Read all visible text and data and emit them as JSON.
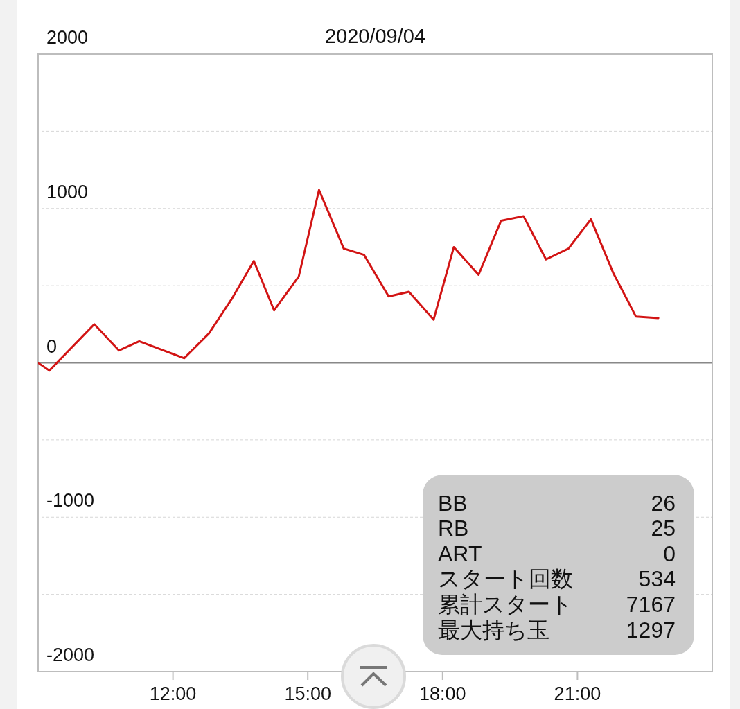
{
  "chart_data": {
    "type": "line",
    "title": "2020/09/04",
    "x": [
      9.0,
      9.25,
      10.25,
      10.8,
      11.25,
      12.25,
      12.8,
      13.3,
      13.8,
      14.25,
      14.8,
      15.25,
      15.8,
      16.25,
      16.8,
      17.25,
      17.8,
      18.25,
      18.8,
      19.3,
      19.8,
      20.3,
      20.8,
      21.3,
      21.8,
      22.3,
      22.8
    ],
    "series": [
      {
        "color": "#d21414",
        "values": [
          0,
          -50,
          250,
          80,
          140,
          30,
          190,
          410,
          660,
          340,
          560,
          1120,
          740,
          700,
          430,
          460,
          280,
          750,
          570,
          920,
          950,
          670,
          740,
          930,
          580,
          300,
          290
        ]
      }
    ],
    "xlim": [
      9,
      24
    ],
    "ylim": [
      -2000,
      2000
    ],
    "xticks": [
      {
        "value": 12,
        "label": "12:00"
      },
      {
        "value": 15,
        "label": "15:00"
      },
      {
        "value": 18,
        "label": "18:00"
      },
      {
        "value": 21,
        "label": "21:00"
      }
    ],
    "yticks": [
      2000,
      {
        "value": 1500,
        "label": null
      },
      1000,
      {
        "value": 500,
        "label": null
      },
      0,
      {
        "value": -500,
        "label": null
      },
      -1000,
      {
        "value": -1500,
        "label": null
      },
      -2000
    ],
    "grid": "y",
    "line_style": "solid",
    "annotations": [
      "BB 26",
      "RB 25",
      "ART 0",
      "スタート回数 534",
      "累計スタート 7167",
      "最大持ち玉 1297"
    ]
  }
}
